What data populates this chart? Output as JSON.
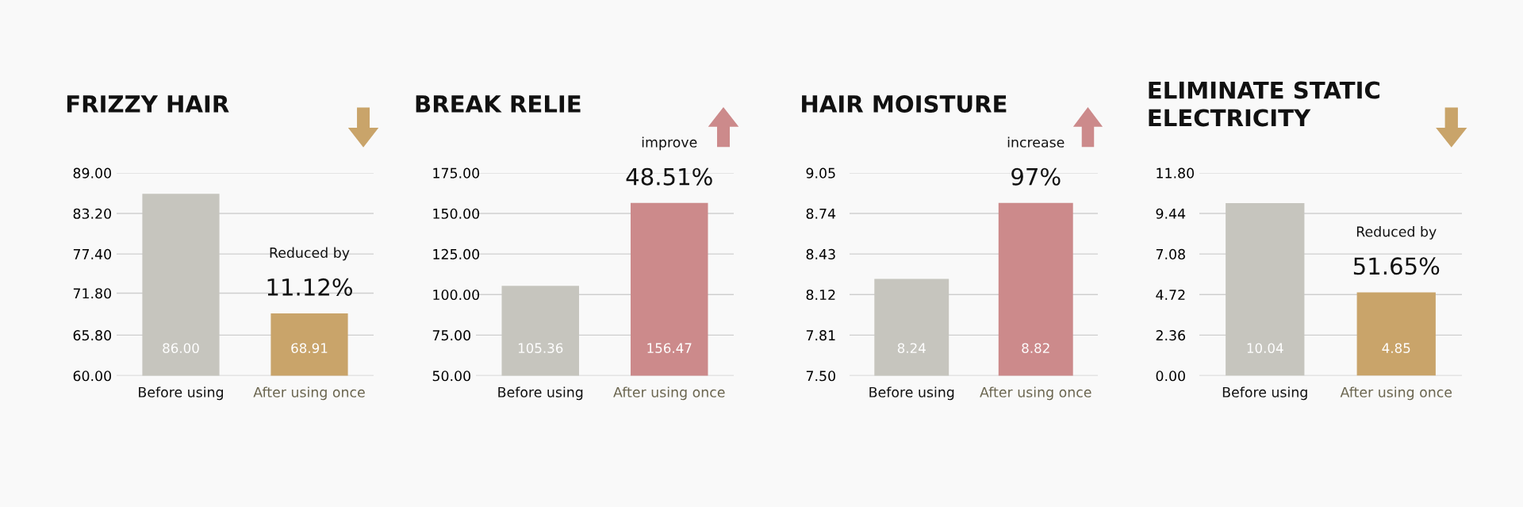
{
  "chart_data": [
    {
      "type": "bar",
      "title": "FRIZZY HAIR",
      "categories": [
        "Before using",
        "After using once"
      ],
      "values": [
        86.0,
        68.91
      ],
      "colors": [
        "#c6c5be",
        "#c9a46a"
      ],
      "ylim": [
        60,
        89
      ],
      "yticks": [
        {
          "value": 60,
          "label": "60.00"
        },
        {
          "value": 65.8,
          "label": "65.80"
        },
        {
          "value": 71.8,
          "label": "71.80"
        },
        {
          "value": 77.4,
          "label": "77.40"
        },
        {
          "value": 83.2,
          "label": "83.20"
        },
        {
          "value": 89,
          "label": "89.00"
        }
      ],
      "grid": "y",
      "value_labels": [
        "86.00",
        "68.91"
      ],
      "annotations": [
        "Reduced by",
        "11.12%"
      ]
    },
    {
      "type": "bar",
      "title": "BREAK RELIE",
      "categories": [
        "Before using",
        "After using once"
      ],
      "values": [
        105.36,
        156.47
      ],
      "colors": [
        "#c6c5be",
        "#cc8a8b"
      ],
      "ylim": [
        50,
        175
      ],
      "yticks": [
        {
          "value": 50,
          "label": "50.00"
        },
        {
          "value": 75,
          "label": "75.00"
        },
        {
          "value": 100,
          "label": "100.00"
        },
        {
          "value": 125,
          "label": "125.00"
        },
        {
          "value": 150,
          "label": "150.00"
        },
        {
          "value": 175,
          "label": "175.00"
        }
      ],
      "grid": "y",
      "value_labels": [
        "105.36",
        "156.47"
      ],
      "annotations": [
        "improve",
        "48.51%"
      ]
    },
    {
      "type": "bar",
      "title": "HAIR MOISTURE",
      "categories": [
        "Before using",
        "After using once"
      ],
      "values": [
        8.24,
        8.82
      ],
      "colors": [
        "#c6c5be",
        "#cc8a8b"
      ],
      "ylim": [
        7.5,
        9.05
      ],
      "yticks": [
        {
          "value": 7.5,
          "label": "7.50"
        },
        7.81,
        8.12,
        8.43,
        8.74,
        9.05
      ],
      "grid": "y",
      "value_labels": [
        "8.24",
        "8.82"
      ],
      "annotations": [
        "increase",
        "97%"
      ]
    },
    {
      "type": "bar",
      "title": "ELIMINATE STATIC\nELECTRICITY",
      "categories": [
        "Before using",
        "After using once"
      ],
      "values": [
        10.04,
        4.85
      ],
      "colors": [
        "#c6c5be",
        "#c9a46a"
      ],
      "ylim": [
        0,
        11.8
      ],
      "yticks": [
        {
          "value": 0,
          "label": "0.00"
        },
        2.36,
        4.72,
        7.08,
        9.44,
        {
          "value": 11.8,
          "label": "11.80"
        }
      ],
      "grid": "y",
      "value_labels": [
        "10.04",
        "4.85"
      ],
      "annotations": [
        "Reduced by",
        "51.65%"
      ]
    }
  ]
}
